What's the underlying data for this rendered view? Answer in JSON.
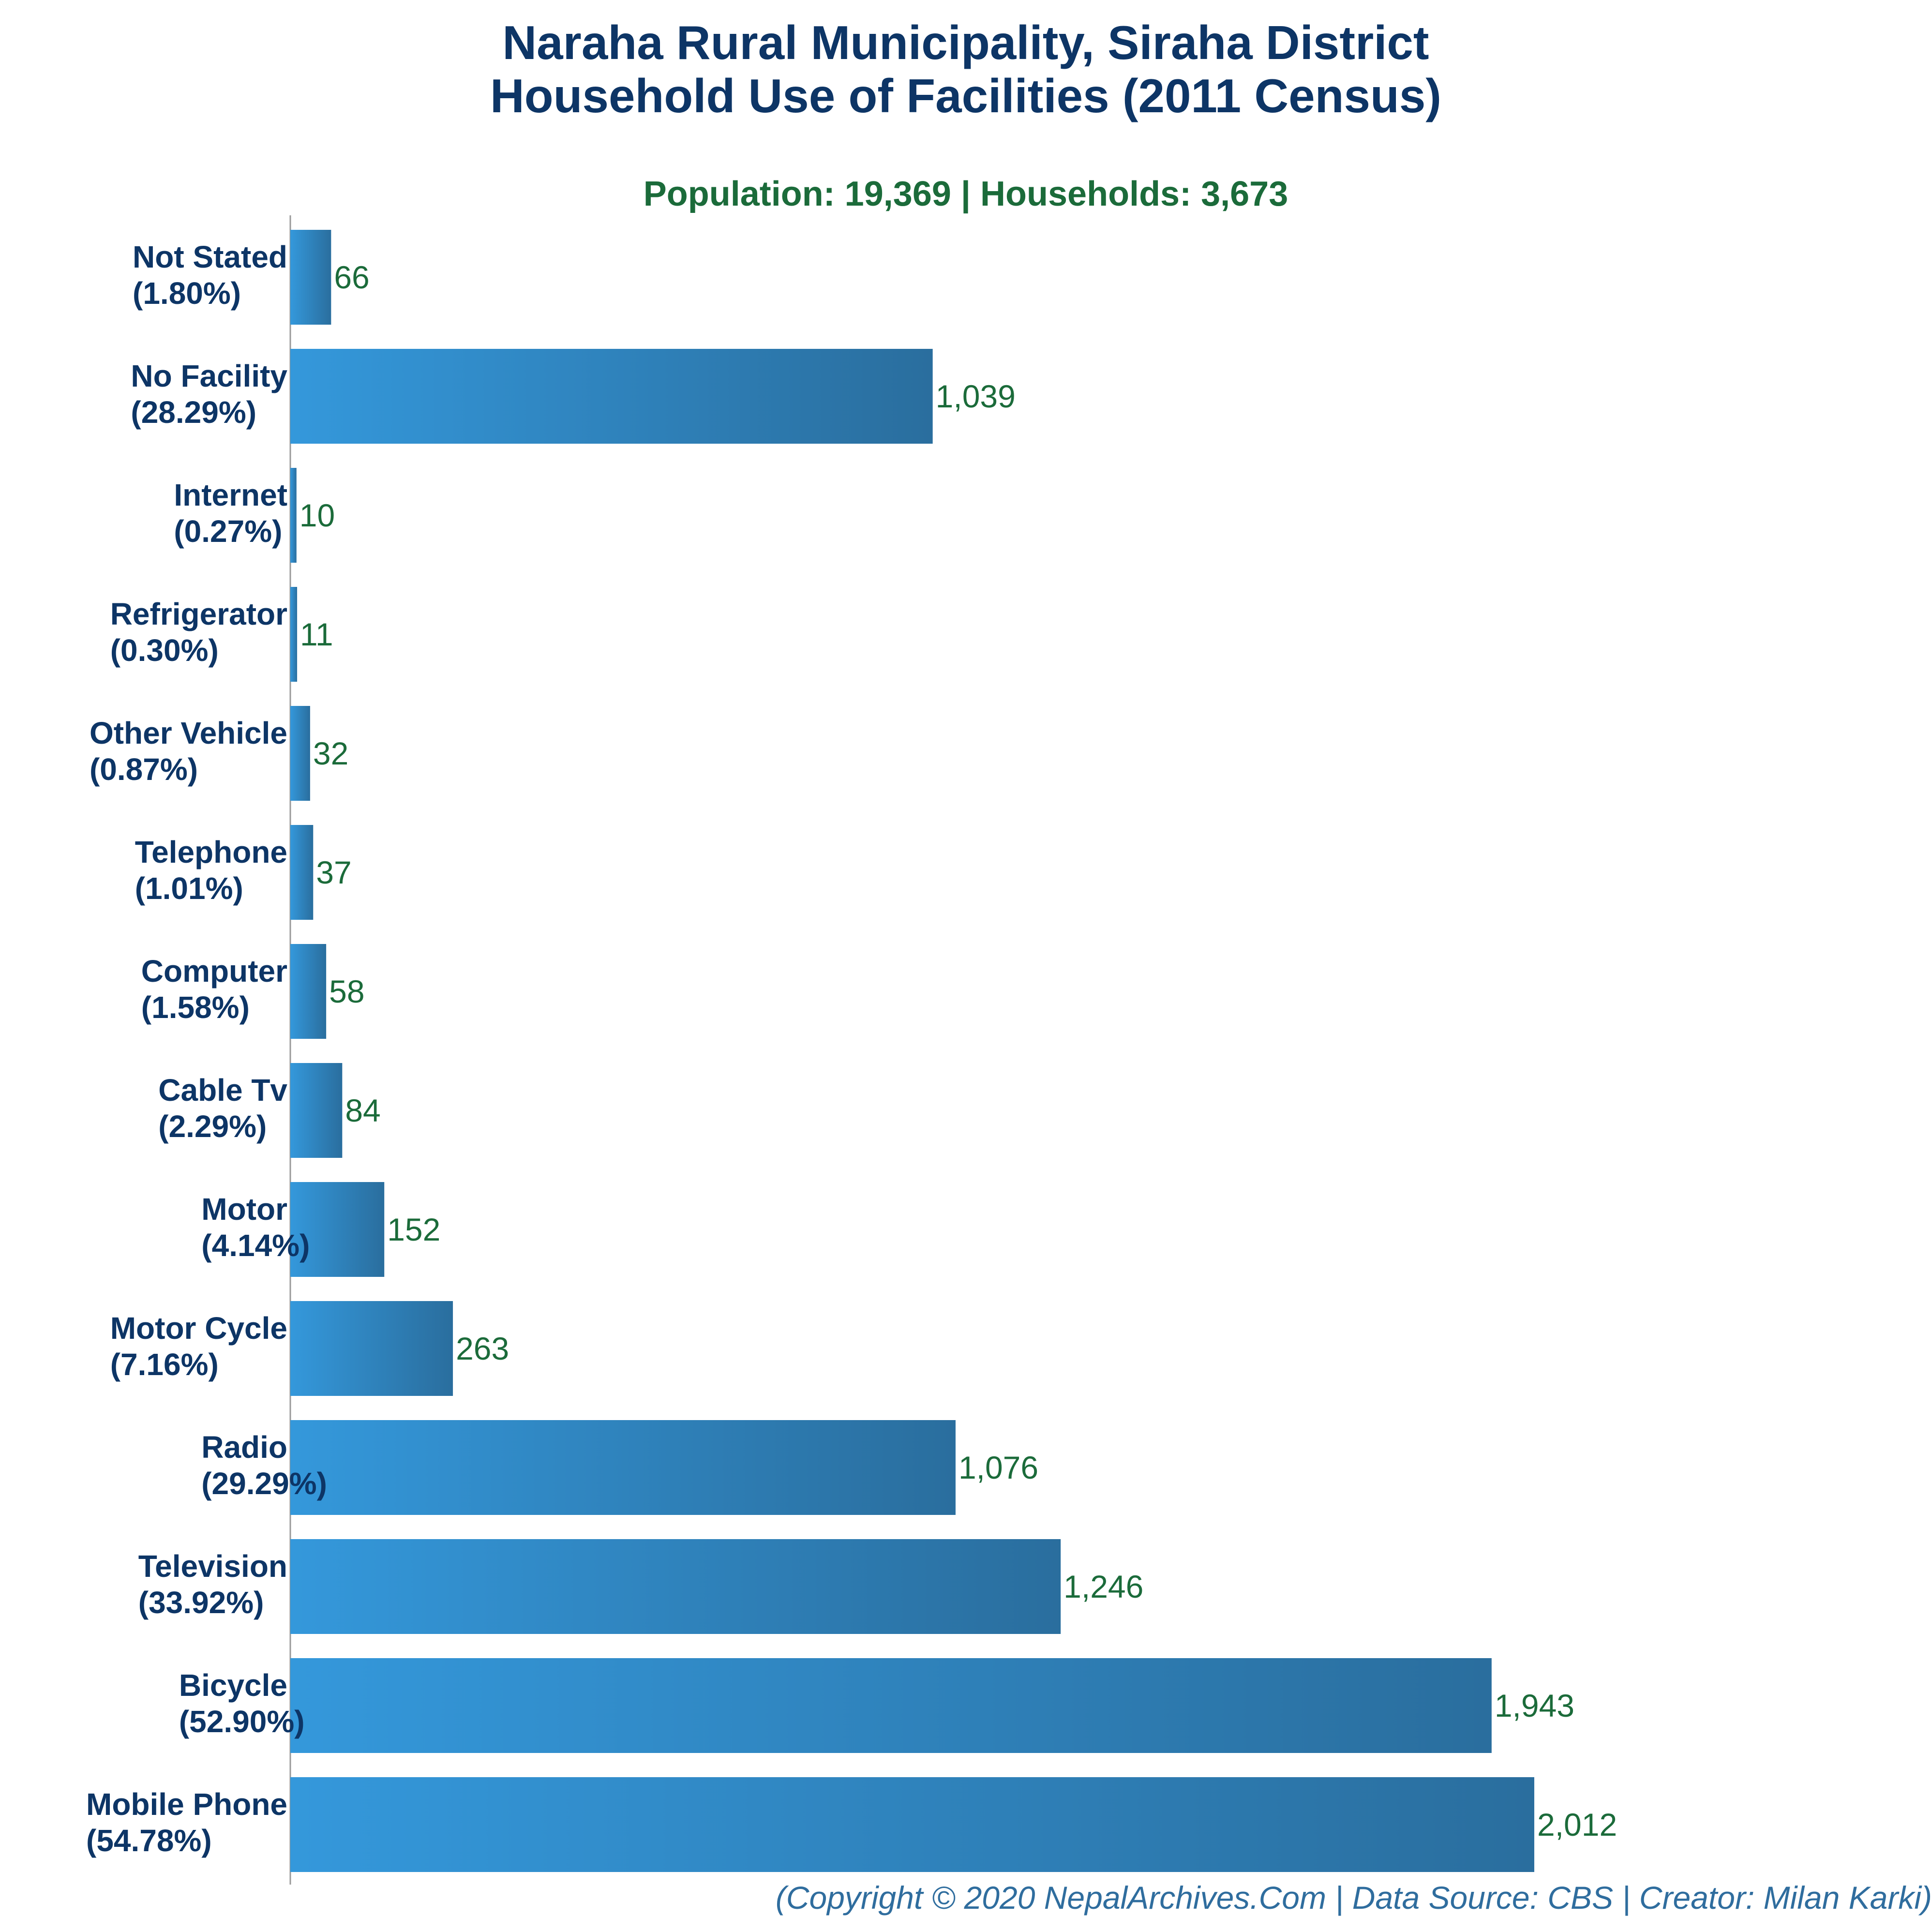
{
  "colors": {
    "title": "#0d3566",
    "subtitle": "#1b6b3a",
    "value_label": "#1b6b3a",
    "category_label": "#0d3566",
    "bar_start": "#3498db",
    "bar_end": "#2a6e9e",
    "axis": "#999999",
    "footer": "#2f6d9e"
  },
  "chart_data": {
    "type": "bar",
    "orientation": "horizontal",
    "title_lines": [
      "Naraha Rural Municipality, Siraha District",
      "Household Use of Facilities (2011 Census)"
    ],
    "subtitle": "Population: 19,369 | Households: 3,673",
    "footer": "(Copyright © 2020 NepalArchives.Com | Data Source: CBS | Creator: Milan Karki)",
    "xlim": [
      0,
      2200
    ],
    "grid": false,
    "categories": [
      {
        "name": "Not Stated",
        "pct": "(1.80%)",
        "value": 66,
        "value_label": "66"
      },
      {
        "name": "No Facility",
        "pct": "(28.29%)",
        "value": 1039,
        "value_label": "1,039"
      },
      {
        "name": "Internet",
        "pct": "(0.27%)",
        "value": 10,
        "value_label": "10"
      },
      {
        "name": "Refrigerator",
        "pct": "(0.30%)",
        "value": 11,
        "value_label": "11"
      },
      {
        "name": "Other Vehicle",
        "pct": "(0.87%)",
        "value": 32,
        "value_label": "32"
      },
      {
        "name": "Telephone",
        "pct": "(1.01%)",
        "value": 37,
        "value_label": "37"
      },
      {
        "name": "Computer",
        "pct": "(1.58%)",
        "value": 58,
        "value_label": "58"
      },
      {
        "name": "Cable Tv",
        "pct": "(2.29%)",
        "value": 84,
        "value_label": "84"
      },
      {
        "name": "Motor",
        "pct": "(4.14%)",
        "value": 152,
        "value_label": "152"
      },
      {
        "name": "Motor Cycle",
        "pct": "(7.16%)",
        "value": 263,
        "value_label": "263"
      },
      {
        "name": "Radio",
        "pct": "(29.29%)",
        "value": 1076,
        "value_label": "1,076"
      },
      {
        "name": "Television",
        "pct": "(33.92%)",
        "value": 1246,
        "value_label": "1,246"
      },
      {
        "name": "Bicycle",
        "pct": "(52.90%)",
        "value": 1943,
        "value_label": "1,943"
      },
      {
        "name": "Mobile Phone",
        "pct": "(54.78%)",
        "value": 2012,
        "value_label": "2,012"
      }
    ]
  }
}
